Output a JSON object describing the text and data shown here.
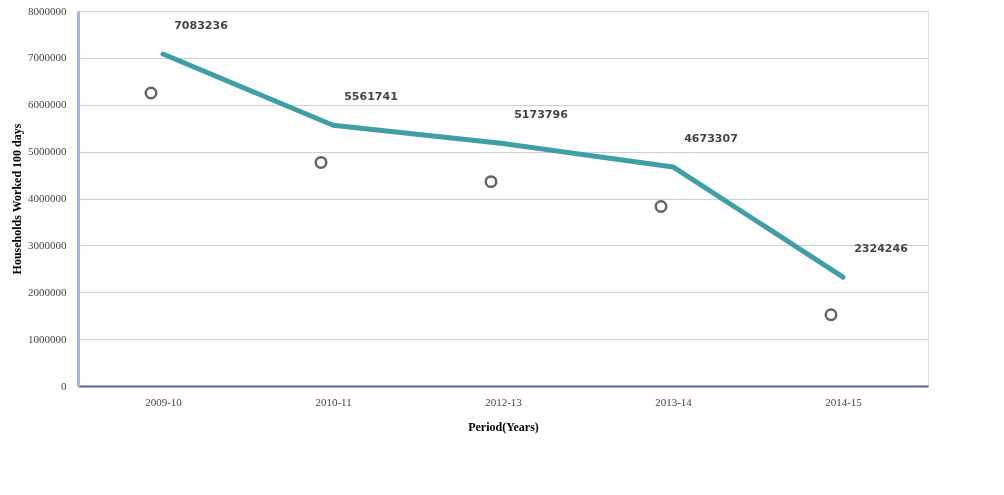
{
  "chart_data": {
    "type": "line",
    "xlabel": "Period(Years)",
    "ylabel": "Households Worked 100 days",
    "categories": [
      "2009-10",
      "2010-11",
      "2012-13",
      "2013-14",
      "2014-15"
    ],
    "series": [
      {
        "color": "#3f9ea6",
        "values": [
          7083236,
          5561741,
          5173796,
          4673307,
          2324246
        ],
        "value_labels": [
          "7083236",
          "5561741",
          "5173796",
          "4673307",
          "2324246"
        ],
        "marker": "none"
      },
      {
        "type": "scatter",
        "color": "#222222",
        "values": [
          6250000,
          4770000,
          4360000,
          3830000,
          1520000
        ],
        "marker": "circle"
      }
    ],
    "ylim": [
      0,
      8000000
    ],
    "yticks": [
      0,
      1000000,
      2000000,
      3000000,
      4000000,
      5000000,
      6000000,
      7000000,
      8000000
    ],
    "grid": "y"
  }
}
